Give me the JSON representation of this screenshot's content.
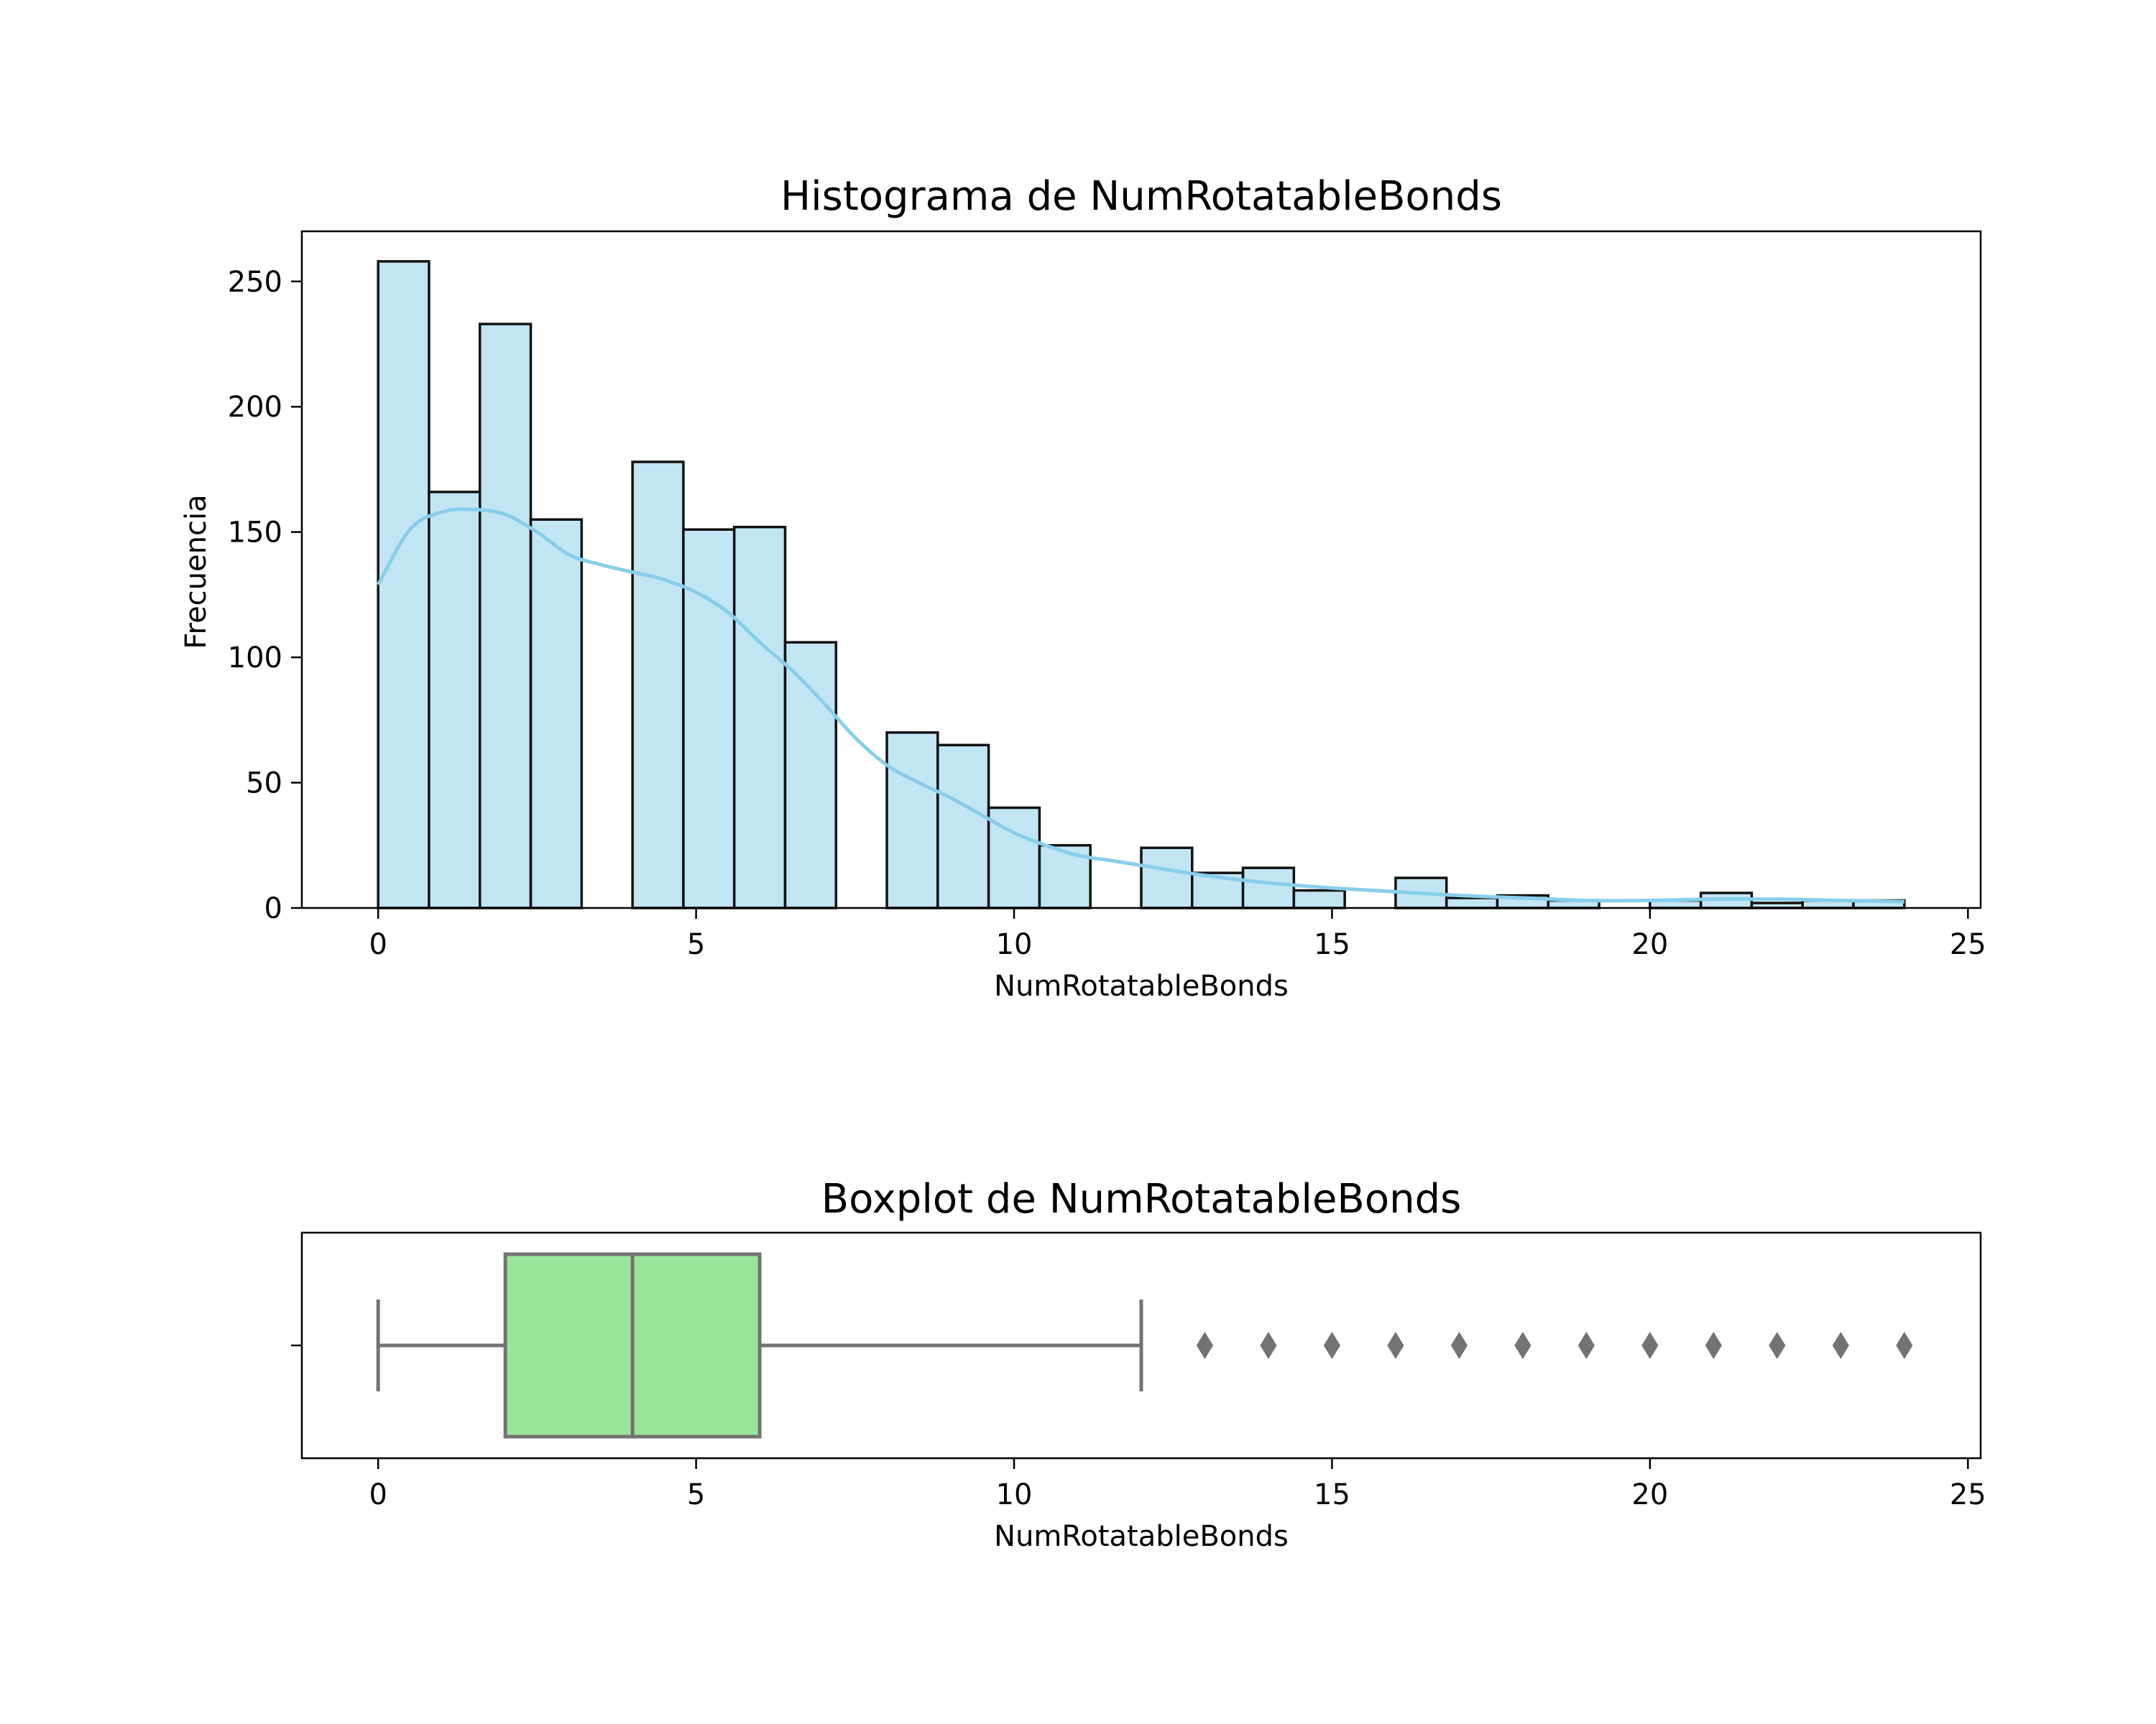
{
  "colors": {
    "hist_fill": "#c2e5f3",
    "kde_line": "#87ceeb",
    "box_fill": "#9ae59a",
    "box_line": "#737373",
    "bar_edge": "#111111"
  },
  "chart_data": [
    {
      "type": "histogram",
      "title": "Histograma de NumRotatableBonds",
      "xlabel": "NumRotatableBonds",
      "ylabel": "Frecuencia",
      "xlim": [
        -1.2,
        25.2
      ],
      "ylim": [
        0,
        270
      ],
      "xticks": [
        0,
        5,
        10,
        15,
        20,
        25
      ],
      "yticks": [
        0,
        50,
        100,
        150,
        200,
        250
      ],
      "bin_width": 0.8,
      "bin_start": 0,
      "values": [
        258,
        166,
        233,
        155,
        0,
        178,
        151,
        152,
        106,
        0,
        70,
        65,
        40,
        25,
        0,
        24,
        14,
        16,
        7,
        0,
        12,
        4,
        5,
        3,
        0,
        3,
        6,
        2,
        3,
        3
      ],
      "kde": {
        "x": [
          0,
          0.5,
          1,
          1.5,
          2,
          2.5,
          3,
          3.5,
          4,
          4.5,
          5,
          5.5,
          6,
          6.5,
          7,
          7.5,
          8,
          8.5,
          9,
          9.5,
          10,
          10.5,
          11,
          11.5,
          12,
          13,
          14,
          15,
          16,
          17,
          18,
          19,
          20,
          21,
          22,
          23,
          24
        ],
        "y": [
          129,
          151,
          158,
          159,
          157,
          150,
          141,
          137,
          134,
          131,
          126,
          118,
          106,
          95,
          82,
          68,
          57,
          50,
          44,
          37,
          30,
          25,
          21,
          19,
          17,
          13,
          10,
          8,
          6.5,
          5,
          4,
          3,
          3,
          3.5,
          3.5,
          3,
          2.5
        ]
      }
    },
    {
      "type": "boxplot",
      "title": "Boxplot de NumRotatableBonds",
      "xlabel": "NumRotatableBonds",
      "xlim": [
        -1.2,
        25.2
      ],
      "xticks": [
        0,
        5,
        10,
        15,
        20,
        25
      ],
      "whisker_low": 0,
      "q1": 2,
      "median": 4,
      "q3": 6,
      "whisker_high": 12,
      "outliers": [
        13,
        14,
        15,
        16,
        17,
        18,
        19,
        20,
        21,
        22,
        23,
        24
      ]
    }
  ]
}
